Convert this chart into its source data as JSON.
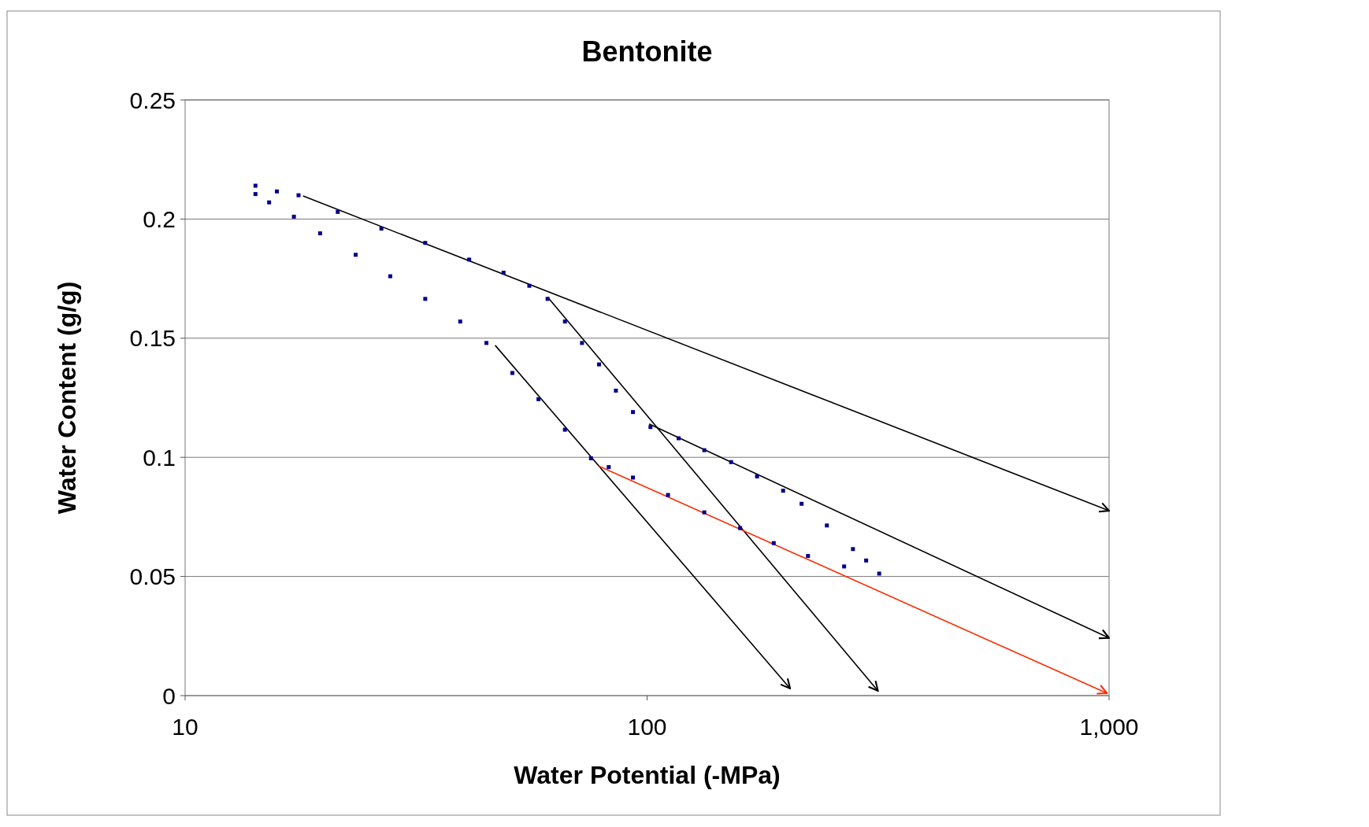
{
  "chart_data": {
    "type": "scatter",
    "title": "Bentonite",
    "xlabel": "Water Potential (-MPa)",
    "ylabel": "Water Content (g/g)",
    "log": "x",
    "grid": "y",
    "xlim": [
      10,
      1000
    ],
    "xticks": [
      10,
      100,
      {
        "value": 1000,
        "label": "1,000"
      }
    ],
    "ylim": [
      0,
      0.25
    ],
    "yticks": [
      0,
      0.05,
      0.1,
      0.15,
      0.2,
      0.25
    ],
    "series": [
      {
        "marker": "square",
        "color": "#00008b",
        "x": [
          14.2,
          15.8,
          17.6,
          21.4,
          26.6,
          33.1,
          41.2,
          48.9,
          55.6,
          60.9,
          66.4,
          72.3,
          78.7,
          85.6,
          93.2,
          101.7,
          117,
          133,
          152,
          173,
          197,
          216,
          245,
          279,
          298,
          318
        ],
        "values": [
          0.214,
          0.2116,
          0.21,
          0.203,
          0.196,
          0.19,
          0.183,
          0.1775,
          0.172,
          0.1665,
          0.157,
          0.148,
          0.139,
          0.128,
          0.119,
          0.1127,
          0.108,
          0.103,
          0.098,
          0.092,
          0.086,
          0.0805,
          0.0714,
          0.0615,
          0.0567,
          0.0512
        ]
      },
      {
        "marker": "square",
        "color": "#00008b",
        "x": [
          14.2,
          15.2,
          17.2,
          19.6,
          23.4,
          27.8,
          33.1,
          39.4,
          44.9,
          51.1,
          58.2,
          66.4,
          75.6,
          82.6,
          93.2,
          111,
          133,
          159,
          188,
          223,
          267
        ],
        "values": [
          0.2105,
          0.207,
          0.201,
          0.194,
          0.185,
          0.176,
          0.1665,
          0.157,
          0.148,
          0.1354,
          0.1244,
          0.1116,
          0.0996,
          0.0959,
          0.0915,
          0.0842,
          0.0769,
          0.0703,
          0.064,
          0.0586,
          0.0542
        ]
      },
      {
        "type": "line",
        "marker": "none",
        "color": "#000000",
        "x": [
          18,
          1000
        ],
        "values": [
          0.2097,
          0.0776
        ]
      },
      {
        "type": "line",
        "marker": "none",
        "color": "#000000",
        "x": [
          46.9,
          204
        ],
        "values": [
          0.147,
          0.003
        ]
      },
      {
        "type": "line",
        "marker": "none",
        "color": "#000000",
        "x": [
          60.9,
          316
        ],
        "values": [
          0.1673,
          0.002
        ]
      },
      {
        "type": "line",
        "marker": "none",
        "color": "#000000",
        "x": [
          101,
          1000
        ],
        "values": [
          0.114,
          0.0242
        ]
      },
      {
        "type": "line",
        "marker": "none",
        "color": "#ff2a00",
        "x": [
          78.7,
          990
        ],
        "values": [
          0.0963,
          0.001
        ]
      }
    ]
  }
}
